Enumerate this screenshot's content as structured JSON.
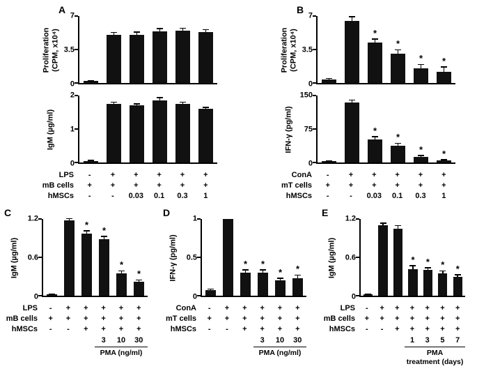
{
  "sig_marker": "*",
  "colors": {
    "bar": "#111111",
    "axis": "#000000",
    "background": "#ffffff",
    "text": "#000000"
  },
  "chart_data": [
    {
      "panel": "A",
      "row": "top",
      "charts": [
        {
          "type": "bar",
          "ylabel": "Proliferation\n(CPM, x10⁴)",
          "ylim": [
            0,
            7
          ],
          "yticks": [
            "0",
            "3.5",
            "7"
          ],
          "values": [
            0.2,
            5.0,
            5.0,
            5.4,
            5.5,
            5.3
          ],
          "errors": [
            0.05,
            0.3,
            0.35,
            0.3,
            0.25,
            0.3
          ],
          "star_indices": []
        },
        {
          "type": "bar",
          "ylabel": "IgM (µg/ml)",
          "ylim": [
            0,
            2
          ],
          "yticks": [
            "0",
            "1",
            "2"
          ],
          "values": [
            0.05,
            1.75,
            1.7,
            1.85,
            1.75,
            1.6
          ],
          "errors": [
            0.02,
            0.06,
            0.06,
            0.09,
            0.06,
            0.05
          ],
          "star_indices": []
        }
      ],
      "condition_rows": [
        {
          "label": "LPS",
          "cells": [
            "-",
            "+",
            "+",
            "+",
            "+",
            "+"
          ]
        },
        {
          "label": "mB cells",
          "cells": [
            "+",
            "+",
            "+",
            "+",
            "+",
            "+"
          ]
        },
        {
          "label": "hMSCs",
          "cells": [
            "-",
            "-",
            "0.03",
            "0.1",
            "0.3",
            "1"
          ]
        }
      ],
      "dose_row": null
    },
    {
      "panel": "B",
      "row": "top",
      "charts": [
        {
          "type": "bar",
          "ylabel": "Proliferation\n(CPM, x10⁴)",
          "ylim": [
            0,
            7
          ],
          "yticks": [
            "0",
            "3.5",
            "7"
          ],
          "values": [
            0.4,
            6.5,
            4.2,
            3.1,
            1.5,
            1.2
          ],
          "errors": [
            0.1,
            0.45,
            0.4,
            0.4,
            0.45,
            0.5
          ],
          "star_indices": [
            2,
            3,
            4,
            5
          ]
        },
        {
          "type": "bar",
          "ylabel": "IFN-γ (pg/ml)",
          "ylim": [
            0,
            150
          ],
          "yticks": [
            "0",
            "75",
            "150"
          ],
          "values": [
            3,
            135,
            52,
            38,
            13,
            5
          ],
          "errors": [
            1,
            5,
            6,
            5,
            3,
            2
          ],
          "star_indices": [
            2,
            3,
            4,
            5
          ]
        }
      ],
      "condition_rows": [
        {
          "label": "ConA",
          "cells": [
            "-",
            "+",
            "+",
            "+",
            "+",
            "+"
          ]
        },
        {
          "label": "mT cells",
          "cells": [
            "+",
            "+",
            "+",
            "+",
            "+",
            "+"
          ]
        },
        {
          "label": "hMSCs",
          "cells": [
            "-",
            "-",
            "0.03",
            "0.1",
            "0.3",
            "1"
          ]
        }
      ],
      "dose_row": null
    },
    {
      "panel": "C",
      "row": "bottom",
      "charts": [
        {
          "type": "bar",
          "ylabel": "IgM (µg/ml)",
          "ylim": [
            0,
            1.2
          ],
          "yticks": [
            "0",
            "0.6",
            "1.2"
          ],
          "values": [
            0.02,
            1.18,
            0.97,
            0.88,
            0.35,
            0.22
          ],
          "errors": [
            0.01,
            0.03,
            0.05,
            0.05,
            0.04,
            0.03
          ],
          "star_indices": [
            2,
            3,
            4,
            5
          ]
        }
      ],
      "condition_rows": [
        {
          "label": "LPS",
          "cells": [
            "-",
            "+",
            "+",
            "+",
            "+",
            "+"
          ]
        },
        {
          "label": "mB cells",
          "cells": [
            "+",
            "+",
            "+",
            "+",
            "+",
            "+"
          ]
        },
        {
          "label": "hMSCs",
          "cells": [
            "-",
            "-",
            "+",
            "+",
            "+",
            "+"
          ]
        }
      ],
      "dose_row": {
        "cells": [
          "",
          "",
          "",
          "3",
          "10",
          "30"
        ],
        "span_start": 3,
        "label": "PMA (ng/ml)"
      }
    },
    {
      "panel": "D",
      "row": "bottom",
      "charts": [
        {
          "type": "bar",
          "ylabel": "IFN-γ (pg/ml)",
          "ylim": [
            0,
            1
          ],
          "yticks": [
            "0",
            "0.5",
            "1"
          ],
          "values": [
            0.07,
            1.0,
            0.3,
            0.3,
            0.2,
            0.23
          ],
          "errors": [
            0.02,
            0,
            0.04,
            0.04,
            0.03,
            0.04
          ],
          "star_indices": [
            2,
            3,
            4,
            5
          ]
        }
      ],
      "condition_rows": [
        {
          "label": "ConA",
          "cells": [
            "-",
            "+",
            "+",
            "+",
            "+",
            "+"
          ]
        },
        {
          "label": "mT cells",
          "cells": [
            "+",
            "+",
            "+",
            "+",
            "+",
            "+"
          ]
        },
        {
          "label": "hMSCs",
          "cells": [
            "-",
            "-",
            "+",
            "+",
            "+",
            "+"
          ]
        }
      ],
      "dose_row": {
        "cells": [
          "",
          "",
          "",
          "3",
          "10",
          "30"
        ],
        "span_start": 3,
        "label": "PMA (ng/ml)"
      }
    },
    {
      "panel": "E",
      "row": "bottom",
      "charts": [
        {
          "type": "bar",
          "ylabel": "IgM (µg/ml)",
          "ylim": [
            0,
            1.2
          ],
          "yticks": [
            "0",
            "0.6",
            "1.2"
          ],
          "values": [
            0.02,
            1.1,
            1.05,
            0.42,
            0.4,
            0.35,
            0.3
          ],
          "errors": [
            0.01,
            0.04,
            0.05,
            0.05,
            0.04,
            0.04,
            0.03
          ],
          "star_indices": [
            3,
            4,
            5,
            6
          ]
        }
      ],
      "condition_rows": [
        {
          "label": "LPS",
          "cells": [
            "-",
            "+",
            "+",
            "+",
            "+",
            "+",
            "+"
          ]
        },
        {
          "label": "mB cells",
          "cells": [
            "+",
            "+",
            "+",
            "+",
            "+",
            "+",
            "+"
          ]
        },
        {
          "label": "hMSCs",
          "cells": [
            "-",
            "-",
            "+",
            "+",
            "+",
            "+",
            "+"
          ]
        }
      ],
      "dose_row": {
        "cells": [
          "",
          "",
          "",
          "1",
          "3",
          "5",
          "7"
        ],
        "span_start": 3,
        "label": "PMA\ntreatment (days)"
      }
    }
  ]
}
